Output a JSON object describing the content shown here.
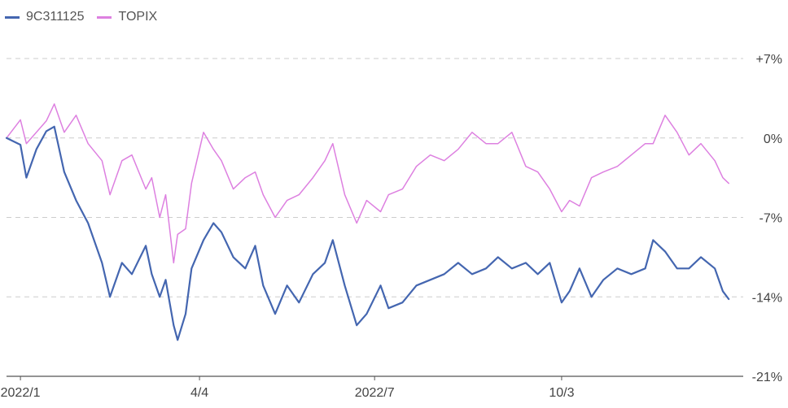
{
  "colors": {
    "series1": "#4466b0",
    "series2": "#dd80e0",
    "grid": "#cccccc",
    "axis": "#555555"
  },
  "chart_data": {
    "type": "line",
    "title": "",
    "xlabel": "",
    "ylabel": "",
    "x_tick_labels": [
      "2022/1",
      "4/4",
      "2022/7",
      "10/3"
    ],
    "x_tick_dates": [
      "2022-01-04",
      "2022-04-04",
      "2022-07-01",
      "2022-10-03"
    ],
    "x_range": [
      "2021-12-28",
      "2022-12-30"
    ],
    "y_ticks": [
      7,
      0,
      -7,
      -14,
      -21
    ],
    "y_tick_labels": [
      "+7%",
      "0%",
      "-7%",
      "-14%",
      "-21%"
    ],
    "ylim": [
      -21,
      7
    ],
    "grid": "horizontal dashed",
    "legend_position": "top-left",
    "series": [
      {
        "name": "9C311125",
        "color": "#4466b0",
        "points": [
          [
            "2021-12-28",
            0
          ],
          [
            "2022-01-04",
            -0.6
          ],
          [
            "2022-01-07",
            -3.5
          ],
          [
            "2022-01-12",
            -1.0
          ],
          [
            "2022-01-17",
            0.6
          ],
          [
            "2022-01-21",
            1.0
          ],
          [
            "2022-01-26",
            -3.0
          ],
          [
            "2022-02-01",
            -5.5
          ],
          [
            "2022-02-07",
            -7.5
          ],
          [
            "2022-02-14",
            -11.0
          ],
          [
            "2022-02-18",
            -14.0
          ],
          [
            "2022-02-24",
            -11.0
          ],
          [
            "2022-03-01",
            -12.0
          ],
          [
            "2022-03-08",
            -9.5
          ],
          [
            "2022-03-11",
            -12.0
          ],
          [
            "2022-03-15",
            -14.0
          ],
          [
            "2022-03-18",
            -12.5
          ],
          [
            "2022-03-22",
            -16.5
          ],
          [
            "2022-03-24",
            -17.8
          ],
          [
            "2022-03-28",
            -15.5
          ],
          [
            "2022-03-31",
            -11.5
          ],
          [
            "2022-04-06",
            -9.0
          ],
          [
            "2022-04-11",
            -7.5
          ],
          [
            "2022-04-15",
            -8.3
          ],
          [
            "2022-04-21",
            -10.5
          ],
          [
            "2022-04-27",
            -11.5
          ],
          [
            "2022-05-02",
            -9.5
          ],
          [
            "2022-05-06",
            -13.0
          ],
          [
            "2022-05-12",
            -15.5
          ],
          [
            "2022-05-18",
            -13.0
          ],
          [
            "2022-05-24",
            -14.5
          ],
          [
            "2022-05-31",
            -12.0
          ],
          [
            "2022-06-06",
            -11.0
          ],
          [
            "2022-06-10",
            -9.0
          ],
          [
            "2022-06-16",
            -13.0
          ],
          [
            "2022-06-22",
            -16.5
          ],
          [
            "2022-06-27",
            -15.5
          ],
          [
            "2022-07-04",
            -13.0
          ],
          [
            "2022-07-08",
            -15.0
          ],
          [
            "2022-07-15",
            -14.5
          ],
          [
            "2022-07-22",
            -13.0
          ],
          [
            "2022-07-29",
            -12.5
          ],
          [
            "2022-08-05",
            -12.0
          ],
          [
            "2022-08-12",
            -11.0
          ],
          [
            "2022-08-19",
            -12.0
          ],
          [
            "2022-08-26",
            -11.5
          ],
          [
            "2022-09-01",
            -10.5
          ],
          [
            "2022-09-08",
            -11.5
          ],
          [
            "2022-09-15",
            -11.0
          ],
          [
            "2022-09-21",
            -12.0
          ],
          [
            "2022-09-27",
            -11.0
          ],
          [
            "2022-10-03",
            -14.5
          ],
          [
            "2022-10-07",
            -13.5
          ],
          [
            "2022-10-12",
            -11.5
          ],
          [
            "2022-10-18",
            -14.0
          ],
          [
            "2022-10-24",
            -12.5
          ],
          [
            "2022-10-31",
            -11.5
          ],
          [
            "2022-11-07",
            -12.0
          ],
          [
            "2022-11-14",
            -11.5
          ],
          [
            "2022-11-18",
            -9.0
          ],
          [
            "2022-11-24",
            -10.0
          ],
          [
            "2022-11-30",
            -11.5
          ],
          [
            "2022-12-06",
            -11.5
          ],
          [
            "2022-12-12",
            -10.5
          ],
          [
            "2022-12-19",
            -11.5
          ],
          [
            "2022-12-23",
            -13.5
          ],
          [
            "2022-12-26",
            -14.2
          ]
        ]
      },
      {
        "name": "TOPIX",
        "color": "#dd80e0",
        "points": [
          [
            "2021-12-28",
            0
          ],
          [
            "2022-01-04",
            1.6
          ],
          [
            "2022-01-07",
            -0.5
          ],
          [
            "2022-01-12",
            0.5
          ],
          [
            "2022-01-17",
            1.5
          ],
          [
            "2022-01-21",
            3.0
          ],
          [
            "2022-01-26",
            0.5
          ],
          [
            "2022-02-01",
            2.0
          ],
          [
            "2022-02-07",
            -0.5
          ],
          [
            "2022-02-14",
            -2.0
          ],
          [
            "2022-02-18",
            -5.0
          ],
          [
            "2022-02-24",
            -2.0
          ],
          [
            "2022-03-01",
            -1.5
          ],
          [
            "2022-03-08",
            -4.5
          ],
          [
            "2022-03-11",
            -3.5
          ],
          [
            "2022-03-15",
            -7.0
          ],
          [
            "2022-03-18",
            -5.0
          ],
          [
            "2022-03-22",
            -11.0
          ],
          [
            "2022-03-24",
            -8.5
          ],
          [
            "2022-03-28",
            -8.0
          ],
          [
            "2022-03-31",
            -4.0
          ],
          [
            "2022-04-06",
            0.5
          ],
          [
            "2022-04-11",
            -1.0
          ],
          [
            "2022-04-15",
            -2.0
          ],
          [
            "2022-04-21",
            -4.5
          ],
          [
            "2022-04-27",
            -3.5
          ],
          [
            "2022-05-02",
            -3.0
          ],
          [
            "2022-05-06",
            -5.0
          ],
          [
            "2022-05-12",
            -7.0
          ],
          [
            "2022-05-18",
            -5.5
          ],
          [
            "2022-05-24",
            -5.0
          ],
          [
            "2022-05-31",
            -3.5
          ],
          [
            "2022-06-06",
            -2.0
          ],
          [
            "2022-06-10",
            -0.5
          ],
          [
            "2022-06-16",
            -5.0
          ],
          [
            "2022-06-22",
            -7.5
          ],
          [
            "2022-06-27",
            -5.5
          ],
          [
            "2022-07-04",
            -6.5
          ],
          [
            "2022-07-08",
            -5.0
          ],
          [
            "2022-07-15",
            -4.5
          ],
          [
            "2022-07-22",
            -2.5
          ],
          [
            "2022-07-29",
            -1.5
          ],
          [
            "2022-08-05",
            -2.0
          ],
          [
            "2022-08-12",
            -1.0
          ],
          [
            "2022-08-19",
            0.5
          ],
          [
            "2022-08-26",
            -0.5
          ],
          [
            "2022-09-01",
            -0.5
          ],
          [
            "2022-09-08",
            0.5
          ],
          [
            "2022-09-15",
            -2.5
          ],
          [
            "2022-09-21",
            -3.0
          ],
          [
            "2022-09-27",
            -4.5
          ],
          [
            "2022-10-03",
            -6.5
          ],
          [
            "2022-10-07",
            -5.5
          ],
          [
            "2022-10-12",
            -6.0
          ],
          [
            "2022-10-18",
            -3.5
          ],
          [
            "2022-10-24",
            -3.0
          ],
          [
            "2022-10-31",
            -2.5
          ],
          [
            "2022-11-07",
            -1.5
          ],
          [
            "2022-11-14",
            -0.5
          ],
          [
            "2022-11-18",
            -0.5
          ],
          [
            "2022-11-24",
            2.0
          ],
          [
            "2022-11-30",
            0.5
          ],
          [
            "2022-12-06",
            -1.5
          ],
          [
            "2022-12-12",
            -0.5
          ],
          [
            "2022-12-19",
            -2.0
          ],
          [
            "2022-12-23",
            -3.5
          ],
          [
            "2022-12-26",
            -4.0
          ]
        ]
      }
    ]
  }
}
